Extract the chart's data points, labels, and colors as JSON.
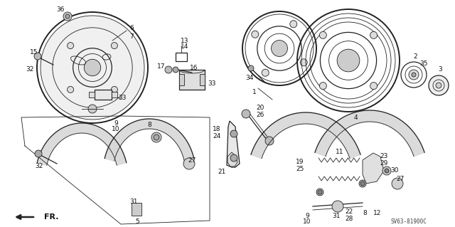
{
  "diagram_code": "SV63-81900C",
  "bg_color": "#ffffff",
  "line_color": "#222222",
  "label_color": "#111111",
  "figsize": [
    6.4,
    3.19
  ],
  "dpi": 100
}
